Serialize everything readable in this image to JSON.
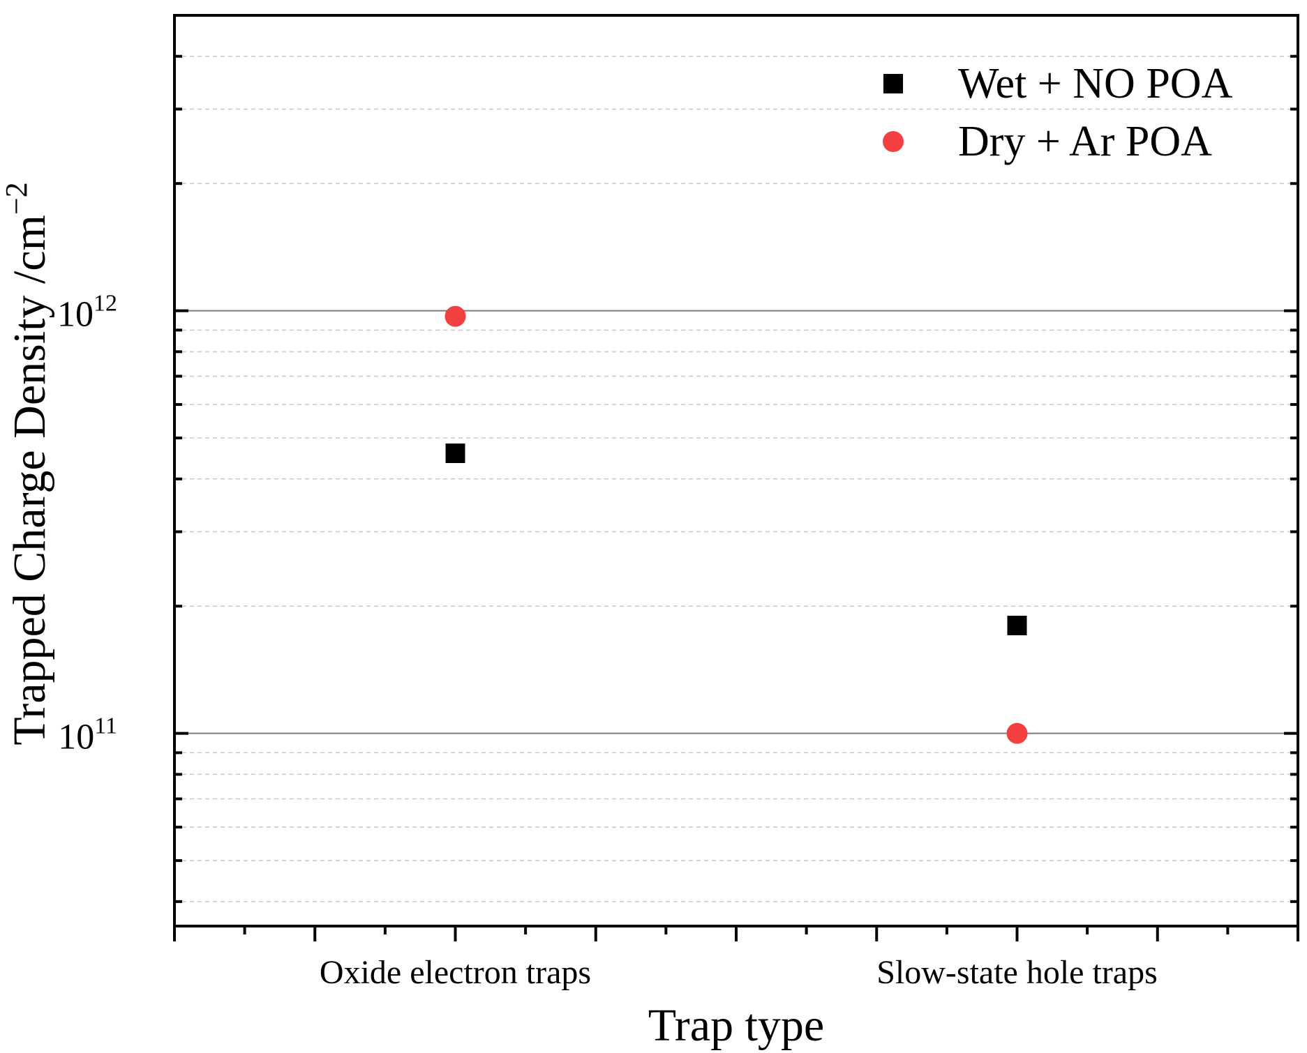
{
  "chart_data": {
    "type": "scatter",
    "title": "",
    "xlabel": "Trap type",
    "ylabel": "Trapped Charge Density /cm",
    "ylabel_exponent": "−2",
    "y_scale": "log",
    "ylim": [
      35000000000.0,
      5000000000000.0
    ],
    "categories": [
      "Oxide electron traps",
      "Slow-state hole traps"
    ],
    "category_x": [
      1,
      3
    ],
    "xlim": [
      0,
      4
    ],
    "y_ticks": [
      {
        "value": 100000000000.0,
        "base": "10",
        "exp": "11"
      },
      {
        "value": 1000000000000.0,
        "base": "10",
        "exp": "12"
      }
    ],
    "grid": true,
    "legend_position": "top-right",
    "series": [
      {
        "name": "Wet + NO POA",
        "marker": "square",
        "color": "#000000",
        "values": [
          460000000000.0,
          180000000000.0
        ]
      },
      {
        "name": "Dry + Ar POA",
        "marker": "circle",
        "color": "#f24040",
        "values": [
          970000000000.0,
          100000000000.0
        ]
      }
    ]
  }
}
